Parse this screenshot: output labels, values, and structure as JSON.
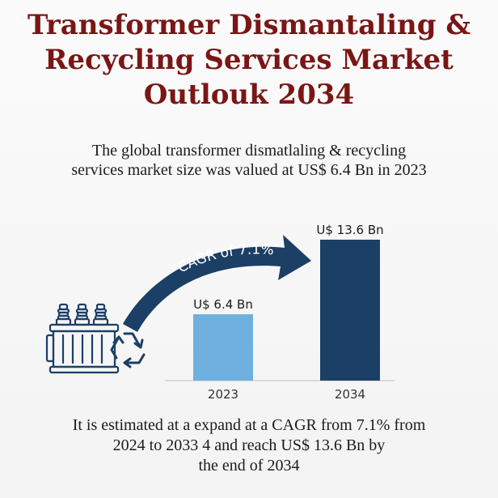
{
  "header": {
    "title_lines": [
      "Transformer Dismantaling &",
      "Recycling Services Market",
      "Outlouk 2034"
    ],
    "subtitle_lines": [
      "The global transformer dismatlaling & recycling",
      "services market size was valued at US$ 6.4 Bn in 2023"
    ]
  },
  "footer": {
    "lines": [
      "It is estimated at a expand at a CAGR from 7.1% from",
      "2024 to 2033  4 and reach US$ 13.6 Bn by",
      "the end of 2034"
    ]
  },
  "cagr_label": "CAGR of 7.1%",
  "icons": [
    "transformer-icon",
    "recycle-icon"
  ],
  "colors": {
    "title": "#7a1616",
    "bar_2023": "#6fb0df",
    "bar_2034": "#1c3f66",
    "arrow": "#1c3f66",
    "baseline": "#cccccc"
  },
  "chart_data": {
    "type": "bar",
    "categories": [
      "2023",
      "2034"
    ],
    "values": [
      6.4,
      13.6
    ],
    "data_labels": [
      "U$ 6.4 Bn",
      "U$ 13.6 Bn"
    ],
    "ylim": [
      0,
      13.6
    ],
    "grid": false,
    "legend": "none"
  }
}
